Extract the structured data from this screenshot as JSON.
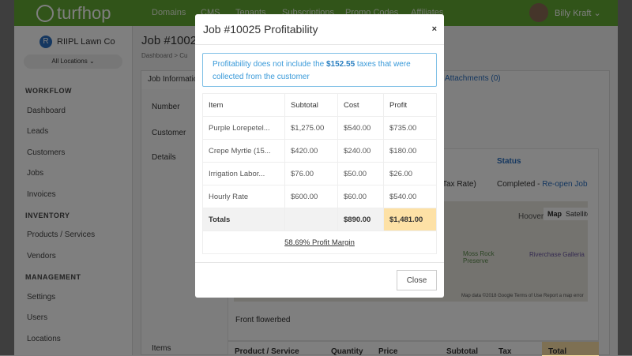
{
  "nav": {
    "logo": "turfhop",
    "items": [
      "Domains",
      "CMS",
      "Tenants",
      "Subscriptions",
      "Promo Codes",
      "Affiliates"
    ],
    "user": "Billy Kraft"
  },
  "sidebar": {
    "org": "RIIPL Lawn Co",
    "org_initial": "R",
    "location": "All Locations",
    "sections": [
      {
        "title": "WORKFLOW",
        "items": [
          "Dashboard",
          "Leads",
          "Customers",
          "Jobs",
          "Invoices"
        ]
      },
      {
        "title": "INVENTORY",
        "items": [
          "Products / Services",
          "Vendors"
        ]
      },
      {
        "title": "MANAGEMENT",
        "items": [
          "Settings",
          "Users",
          "Locations"
        ]
      }
    ]
  },
  "main": {
    "title": "Job #10025",
    "breadcrumb": "Dashboard  >  Cu",
    "tabs": [
      "Job Information",
      "Attachments (0)"
    ],
    "labels": [
      "Number",
      "Customer",
      "Details",
      "Items"
    ],
    "status_header": "Status",
    "tax_rate": "Tax Rate)",
    "status": "Completed - ",
    "reopen": "Re-open Job",
    "map": {
      "place1": "Hoover",
      "place2": "Moss Rock Preserve",
      "place3": "Riverchase Galleria",
      "map_btn": "Map",
      "satellite_btn": "Satellite",
      "footer": "Map data ©2018 Google   Terms of Use   Report a map error"
    },
    "details_text": "Front flowerbed",
    "items_headers": [
      "Product / Service",
      "Quantity",
      "Price",
      "Subtotal",
      "Tax",
      "Total"
    ]
  },
  "modal": {
    "title": "Job #10025 Profitability",
    "close_x": "×",
    "alert_pre": "Profitability does not include the ",
    "alert_amount": "$152.55",
    "alert_post": " taxes that were collected from the customer",
    "headers": [
      "Item",
      "Subtotal",
      "Cost",
      "Profit"
    ],
    "rows": [
      [
        "Purple Lorepetel...",
        "$1,275.00",
        "$540.00",
        "$735.00"
      ],
      [
        "Crepe Myrtle (15...",
        "$420.00",
        "$240.00",
        "$180.00"
      ],
      [
        "Irrigation Labor...",
        "$76.00",
        "$50.00",
        "$26.00"
      ],
      [
        "Hourly Rate",
        "$600.00",
        "$60.00",
        "$540.00"
      ]
    ],
    "totals": {
      "label": "Totals",
      "subtotal": "",
      "cost": "$890.00",
      "profit": "$1,481.00"
    },
    "margin": "58.69% Profit Margin",
    "close": "Close"
  }
}
